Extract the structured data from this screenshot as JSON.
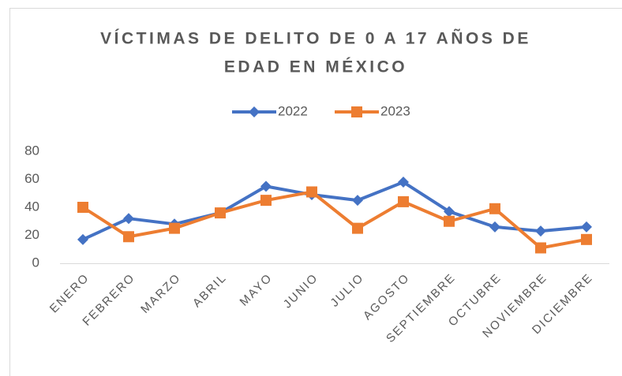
{
  "chart_data": {
    "type": "line",
    "title": [
      "VÍCTIMAS DE DELITO DE 0 A 17 AÑOS DE",
      "EDAD EN MÉXICO"
    ],
    "categories": [
      "ENERO",
      "FEBRERO",
      "MARZO",
      "ABRIL",
      "MAYO",
      "JUNIO",
      "JULIO",
      "AGOSTO",
      "SEPTIEMBRE",
      "OCTUBRE",
      "NOVIEMBRE",
      "DICIEMBRE"
    ],
    "series": [
      {
        "name": "2022",
        "color": "#4472c4",
        "marker": "diamond",
        "values": [
          17,
          32,
          28,
          36,
          55,
          49,
          45,
          58,
          37,
          26,
          23,
          26
        ]
      },
      {
        "name": "2023",
        "color": "#ed7d31",
        "marker": "square",
        "values": [
          40,
          19,
          25,
          36,
          45,
          51,
          25,
          44,
          30,
          39,
          11,
          17
        ]
      }
    ],
    "ylim": [
      0,
      80
    ],
    "yticks": [
      0,
      20,
      40,
      60,
      80
    ],
    "grid": false,
    "legend": "top"
  }
}
